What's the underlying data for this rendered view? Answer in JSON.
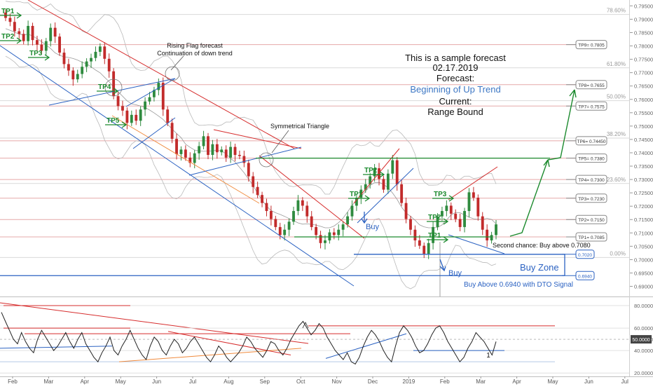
{
  "chart_data": [
    {
      "type": "candlestick",
      "title": "",
      "y_range": [
        0.6862,
        0.7972
      ],
      "price_ticks": [
        "0.79500",
        "0.79000",
        "0.78500",
        "0.78000",
        "0.77500",
        "0.77000",
        "0.76500",
        "0.76000",
        "0.75500",
        "0.75000",
        "0.74500",
        "0.74000",
        "0.73500",
        "0.73000",
        "0.72500",
        "0.72000",
        "0.71500",
        "0.71000",
        "0.70500",
        "0.70000",
        "0.69500",
        "0.69000"
      ],
      "x_labels": [
        "Feb",
        "Mar",
        "Apr",
        "May",
        "Jun",
        "Jul",
        "Aug",
        "Sep",
        "Oct",
        "Nov",
        "Dec",
        "2019",
        "Feb",
        "Mar",
        "Apr",
        "May",
        "Jun",
        "Jul"
      ],
      "fib_levels": [
        {
          "label": "78.60%",
          "price": 0.7918
        },
        {
          "label": "61.80%",
          "price": 0.7718
        },
        {
          "label": "50.00%",
          "price": 0.7595
        },
        {
          "label": "38.20%",
          "price": 0.7455
        },
        {
          "label": "23.60%",
          "price": 0.7285
        },
        {
          "label": "0.00%",
          "price": 0.7008
        }
      ],
      "tp_boxes": [
        {
          "label": "TP9= 0.7805",
          "price": 0.7805
        },
        {
          "label": "TP8= 0.7655",
          "price": 0.7655
        },
        {
          "label": "TP7= 0.7575",
          "price": 0.7575
        },
        {
          "label": "TP6= 0.74450",
          "price": 0.7445
        },
        {
          "label": "TP5= 0.7380",
          "price": 0.738
        },
        {
          "label": "TP4= 0.7300",
          "price": 0.73
        },
        {
          "label": "TP3= 0.7230",
          "price": 0.723
        },
        {
          "label": "TP2= 0.7150",
          "price": 0.715
        },
        {
          "label": "TP1= 0.7085",
          "price": 0.7085
        },
        {
          "label": "0.7020",
          "price": 0.702,
          "style": "blue"
        },
        {
          "label": "0.6940",
          "price": 0.694,
          "style": "blue"
        }
      ],
      "tp_arrows": [
        {
          "label": "TP1",
          "pos": "left"
        },
        {
          "label": "TP2",
          "pos": "left"
        },
        {
          "label": "TP3",
          "pos": "left"
        },
        {
          "label": "TP4",
          "pos": "left"
        },
        {
          "label": "TP5",
          "pos": "left"
        },
        {
          "label": "TP2",
          "pos": "mid"
        },
        {
          "label": "TP1",
          "pos": "mid"
        },
        {
          "label": "TP3",
          "pos": "right"
        },
        {
          "label": "TP2",
          "pos": "right"
        },
        {
          "label": "TP1",
          "pos": "right"
        }
      ],
      "close_series": [
        0.7905,
        0.789,
        0.7855,
        0.7845,
        0.7818,
        0.7875,
        0.7822,
        0.7805,
        0.7782,
        0.7818,
        0.7868,
        0.7835,
        0.7775,
        0.7732,
        0.7708,
        0.7675,
        0.7695,
        0.7722,
        0.7742,
        0.7755,
        0.7778,
        0.7798,
        0.7752,
        0.7705,
        0.7612,
        0.7575,
        0.7558,
        0.7512,
        0.7542,
        0.752,
        0.7562,
        0.7592,
        0.7608,
        0.7635,
        0.7662,
        0.7562,
        0.7512,
        0.7452,
        0.7395,
        0.7412,
        0.7382,
        0.7362,
        0.7398,
        0.7425,
        0.7462,
        0.7392,
        0.7432,
        0.7402,
        0.7412,
        0.7382,
        0.7422,
        0.7392,
        0.7388,
        0.7362,
        0.7312,
        0.7272,
        0.7242,
        0.7212,
        0.7182,
        0.7152,
        0.7122,
        0.7092,
        0.7112,
        0.7142,
        0.7182,
        0.7222,
        0.7202,
        0.7162,
        0.7122,
        0.7092,
        0.7062,
        0.7072,
        0.7102,
        0.7092,
        0.7112,
        0.7132,
        0.7162,
        0.7202,
        0.7232,
        0.7262,
        0.7282,
        0.7312,
        0.7342,
        0.7302,
        0.7262,
        0.7322,
        0.7372,
        0.7282,
        0.7212,
        0.7152,
        0.7112,
        0.7072,
        0.7052,
        0.7022,
        0.7062,
        0.7122,
        0.7162,
        0.7182,
        0.7202,
        0.7172,
        0.7152,
        0.7122,
        0.7182,
        0.7252,
        0.7232,
        0.7162,
        0.7112,
        0.7072,
        0.7092,
        0.7132
      ],
      "rsi_axis": [
        "80.0000",
        "60.0000",
        "50.0000",
        "40.0000",
        "20.0000"
      ],
      "rsi_current": "50.0000",
      "rsi_marker": "1",
      "rsi_series": [
        74,
        66,
        58,
        50,
        46,
        56,
        48,
        42,
        38,
        50,
        58,
        52,
        46,
        40,
        44,
        50,
        56,
        48,
        42,
        50,
        56,
        46,
        40,
        34,
        30,
        38,
        44,
        52,
        40,
        36,
        44,
        50,
        58,
        50,
        42,
        36,
        32,
        44,
        52,
        48,
        40,
        36,
        44,
        50,
        46,
        38,
        42,
        48,
        52,
        46,
        40,
        34,
        30,
        36,
        44,
        40,
        34,
        30,
        34,
        38,
        44,
        52,
        48,
        42,
        38,
        34,
        40,
        48,
        46,
        40,
        36,
        42,
        50,
        56,
        62,
        66,
        60,
        54,
        58,
        64,
        60,
        52,
        46,
        40,
        36,
        32,
        38,
        30,
        28,
        34,
        44,
        52,
        58,
        54,
        48,
        40,
        34,
        30,
        44,
        56,
        62,
        58,
        52,
        44,
        38,
        40,
        46,
        54,
        60,
        62,
        56,
        48,
        42,
        36,
        30,
        34,
        42,
        48,
        56,
        52,
        48,
        42,
        36,
        48
      ]
    }
  ],
  "annotations": {
    "forecast_line1": "This is a sample forecast",
    "forecast_date": "02.17.2019",
    "forecast_label": "Forecast:",
    "forecast_value": "Beginning of Up Trend",
    "current_label": "Current:",
    "current_value": "Range Bound",
    "rising_flag": "Rising Flag forecast",
    "continuation": "Continuation of down trend",
    "triangle": "Symmetrical Triangle",
    "buy1": "Buy",
    "buy2": "Buy",
    "second_chance": "Second chance: Buy above 0.7080",
    "buy_zone": "Buy Zone",
    "buy_above": "Buy Above 0.6940 with DTO Signal"
  },
  "colors": {
    "green": "#1c8a2e",
    "red": "#d62c2c",
    "blue": "#2b62c2",
    "orange": "#f08a3c",
    "fib": "#d9d9d9"
  }
}
